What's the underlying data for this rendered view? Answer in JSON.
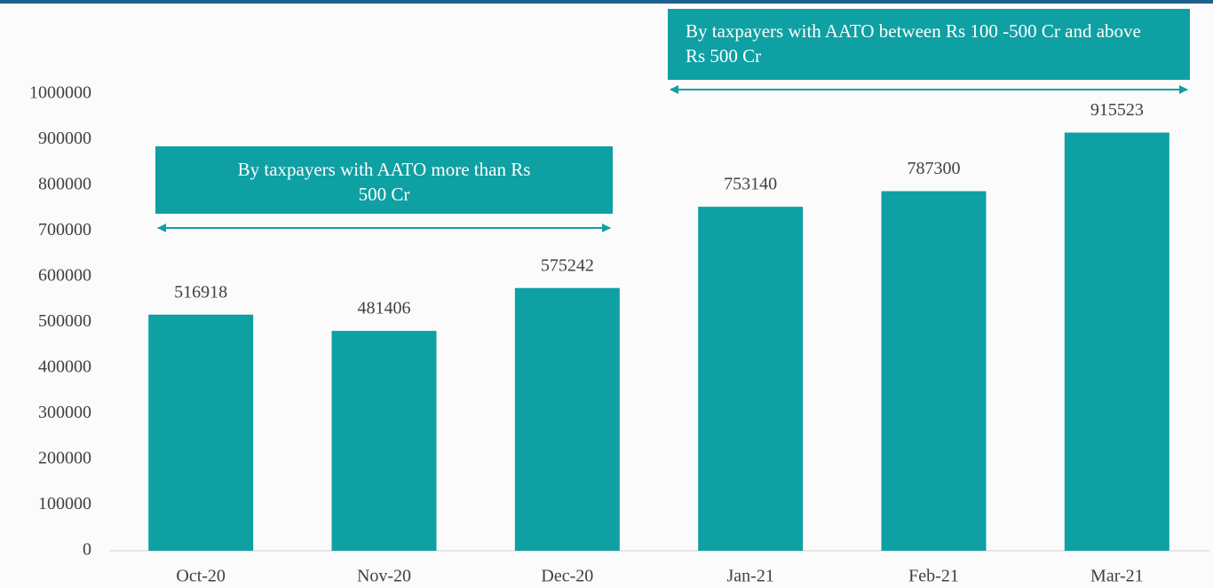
{
  "chart_data": {
    "type": "bar",
    "categories": [
      "Oct-20",
      "Nov-20",
      "Dec-20",
      "Jan-21",
      "Feb-21",
      "Mar-21"
    ],
    "values": [
      516918,
      481406,
      575242,
      753140,
      787300,
      915523
    ],
    "color": "#0fa0a3",
    "ylim": [
      0,
      1000000
    ],
    "yticks": [
      0,
      100000,
      200000,
      300000,
      400000,
      500000,
      600000,
      700000,
      800000,
      900000,
      1000000
    ],
    "annotations": [
      "By taxpayers with AATO more than Rs 500 Cr",
      "By taxpayers with AATO between Rs 100 -500 Cr and above Rs 500 Cr"
    ]
  }
}
